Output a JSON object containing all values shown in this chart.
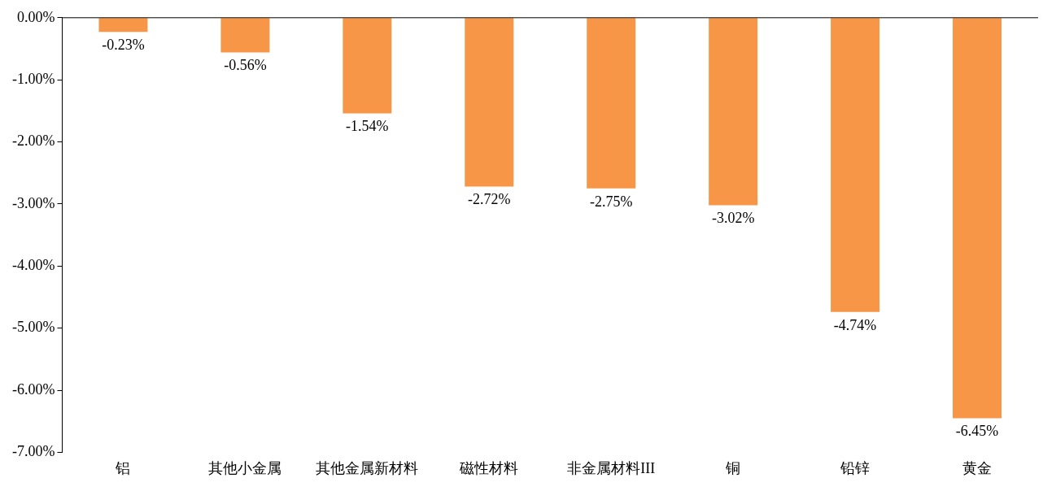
{
  "chart_data": {
    "type": "bar",
    "categories": [
      "铝",
      "其他小金属",
      "其他金属新材料",
      "磁性材料",
      "非金属材料III",
      "铜",
      "铅锌",
      "黄金"
    ],
    "values": [
      -0.23,
      -0.56,
      -1.54,
      -2.72,
      -2.75,
      -3.02,
      -4.74,
      -6.45
    ],
    "value_labels": [
      "-0.23%",
      "-0.56%",
      "-1.54%",
      "-2.72%",
      "-2.75%",
      "-3.02%",
      "-4.74%",
      "-6.45%"
    ],
    "color": "#f79646",
    "ylim": [
      -7,
      0
    ],
    "yticks": [
      {
        "value": 0,
        "label": "0.00%"
      },
      {
        "value": -1,
        "label": "-1.00%"
      },
      {
        "value": -2,
        "label": "-2.00%"
      },
      {
        "value": -3,
        "label": "-3.00%"
      },
      {
        "value": -4,
        "label": "-4.00%"
      },
      {
        "value": -5,
        "label": "-5.00%"
      },
      {
        "value": -6,
        "label": "-6.00%"
      },
      {
        "value": -7,
        "label": "-7.00%"
      }
    ],
    "grid": false,
    "legend": false
  }
}
